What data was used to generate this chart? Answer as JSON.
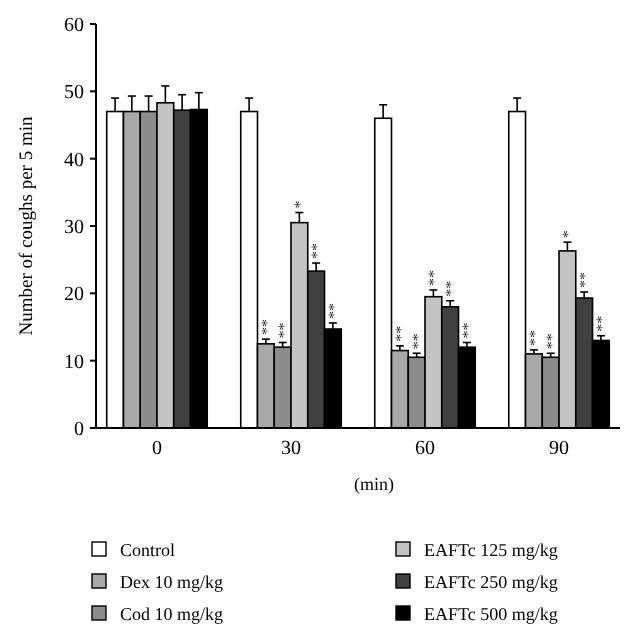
{
  "chart_data": {
    "type": "bar",
    "xlabel": "(min)",
    "ylabel": "Number of coughs per 5 min",
    "categories": [
      "0",
      "30",
      "60",
      "90"
    ],
    "series": [
      {
        "name": "Control",
        "color": "#ffffff",
        "values": [
          47,
          47,
          46,
          47
        ],
        "errors": [
          2,
          2,
          2,
          2
        ]
      },
      {
        "name": "Dex 10 mg/kg",
        "color": "#a8a8a8",
        "values": [
          47,
          12.5,
          11.5,
          11
        ],
        "errors": [
          2.3,
          0.7,
          0.7,
          0.6
        ]
      },
      {
        "name": "Cod 10 mg/kg",
        "color": "#8c8c8c",
        "values": [
          47,
          12,
          10.5,
          10.5
        ],
        "errors": [
          2.3,
          0.7,
          0.6,
          0.6
        ]
      },
      {
        "name": "EAFTc 125 mg/kg",
        "color": "#c4c4c4",
        "values": [
          48.3,
          30.5,
          19.5,
          26.3
        ],
        "errors": [
          2.5,
          1.5,
          1,
          1.3
        ]
      },
      {
        "name": "EAFTc 250 mg/kg",
        "color": "#404040",
        "values": [
          47.2,
          23.3,
          18,
          19.3
        ],
        "errors": [
          2.3,
          1.2,
          0.9,
          0.9
        ]
      },
      {
        "name": "EAFTc 500 mg/kg",
        "color": "#000000",
        "values": [
          47.3,
          14.7,
          12,
          13
        ],
        "errors": [
          2.5,
          0.9,
          0.7,
          0.7
        ]
      }
    ],
    "ylim": [
      0,
      60
    ],
    "yticks": [
      0,
      10,
      20,
      30,
      40,
      50,
      60
    ],
    "grid": false,
    "legend": "bottom",
    "annotations": [
      {
        "text": "**",
        "x": "30",
        "y": 12.5
      },
      {
        "text": "**",
        "x": "30",
        "y": 12
      },
      {
        "text": "*",
        "x": "30",
        "y": 30.5
      },
      {
        "text": "**",
        "x": "30",
        "y": 23.3
      },
      {
        "text": "**",
        "x": "30",
        "y": 14.7
      },
      {
        "text": "**",
        "x": "60",
        "y": 11.5
      },
      {
        "text": "**",
        "x": "60",
        "y": 10.5
      },
      {
        "text": "**",
        "x": "60",
        "y": 19.5
      },
      {
        "text": "**",
        "x": "60",
        "y": 18
      },
      {
        "text": "**",
        "x": "60",
        "y": 12
      },
      {
        "text": "**",
        "x": "90",
        "y": 11
      },
      {
        "text": "**",
        "x": "90",
        "y": 10.5
      },
      {
        "text": "*",
        "x": "90",
        "y": 26.3
      },
      {
        "text": "**",
        "x": "90",
        "y": 19.3
      },
      {
        "text": "**",
        "x": "90",
        "y": 13
      }
    ]
  }
}
